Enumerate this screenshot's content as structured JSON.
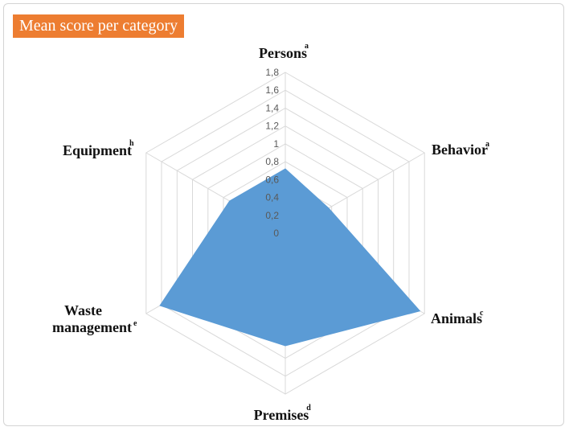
{
  "title": "Mean score per category",
  "chart_data": {
    "type": "radar",
    "title": "Mean score per category",
    "categories": [
      "Persons",
      "Behavior",
      "Animals",
      "Premises",
      "Waste management",
      "Equipment"
    ],
    "superscripts": [
      "a",
      "a",
      "c",
      "d",
      "e",
      "h"
    ],
    "values": [
      0.72,
      0.56,
      1.74,
      1.26,
      1.62,
      0.72
    ],
    "rlim": [
      0,
      1.8
    ],
    "ticks": [
      "0",
      "0,2",
      "0,4",
      "0,6",
      "0,8",
      "1",
      "1,2",
      "1,4",
      "1,6",
      "1,8"
    ],
    "grid": true,
    "fill_color": "#5b9bd5",
    "grid_color": "#d9d9d9"
  }
}
